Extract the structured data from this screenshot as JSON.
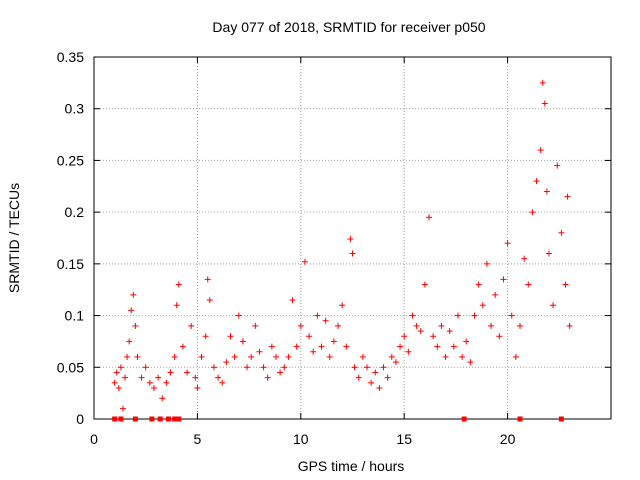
{
  "chart_data": {
    "type": "scatter",
    "title": "Day 077 of 2018, SRMTID for receiver p050",
    "xlabel": "GPS time / hours",
    "ylabel": "SRMTID / TECUs",
    "xlim": [
      0,
      25
    ],
    "ylim": [
      0,
      0.35
    ],
    "xticks": [
      0,
      5,
      10,
      15,
      20
    ],
    "xtick_labels": [
      "0",
      "5",
      "10",
      "15",
      "20"
    ],
    "yticks": [
      0,
      0.05,
      0.1,
      0.15,
      0.2,
      0.25,
      0.3,
      0.35
    ],
    "ytick_labels": [
      "0",
      "0.05",
      "0.1",
      "0.15",
      "0.2",
      "0.25",
      "0.3",
      "0.35"
    ],
    "grid": true,
    "marker": "plus",
    "color": "#ff0000",
    "series": [
      {
        "name": "SRMTID",
        "points": [
          [
            1.0,
            0.035
          ],
          [
            1.1,
            0.045
          ],
          [
            1.2,
            0.03
          ],
          [
            1.3,
            0.05
          ],
          [
            1.4,
            0.01
          ],
          [
            1.5,
            0.04
          ],
          [
            1.6,
            0.06
          ],
          [
            1.7,
            0.075
          ],
          [
            1.8,
            0.105
          ],
          [
            1.9,
            0.12
          ],
          [
            2.0,
            0.09
          ],
          [
            2.1,
            0.06
          ],
          [
            2.3,
            0.04
          ],
          [
            2.5,
            0.05
          ],
          [
            2.7,
            0.035
          ],
          [
            2.9,
            0.03
          ],
          [
            3.1,
            0.04
          ],
          [
            3.3,
            0.02
          ],
          [
            3.5,
            0.035
          ],
          [
            3.7,
            0.045
          ],
          [
            3.9,
            0.06
          ],
          [
            4.0,
            0.11
          ],
          [
            4.1,
            0.13
          ],
          [
            4.3,
            0.07
          ],
          [
            4.5,
            0.045
          ],
          [
            4.7,
            0.09
          ],
          [
            4.9,
            0.04
          ],
          [
            5.0,
            0.03
          ],
          [
            5.2,
            0.06
          ],
          [
            5.4,
            0.08
          ],
          [
            5.5,
            0.135
          ],
          [
            5.6,
            0.115
          ],
          [
            5.8,
            0.05
          ],
          [
            6.0,
            0.04
          ],
          [
            6.2,
            0.035
          ],
          [
            6.4,
            0.055
          ],
          [
            6.6,
            0.08
          ],
          [
            6.8,
            0.06
          ],
          [
            7.0,
            0.1
          ],
          [
            7.2,
            0.075
          ],
          [
            7.4,
            0.05
          ],
          [
            7.6,
            0.06
          ],
          [
            7.8,
            0.09
          ],
          [
            8.0,
            0.065
          ],
          [
            8.2,
            0.05
          ],
          [
            8.4,
            0.04
          ],
          [
            8.6,
            0.07
          ],
          [
            8.8,
            0.06
          ],
          [
            9.0,
            0.045
          ],
          [
            9.2,
            0.05
          ],
          [
            9.4,
            0.06
          ],
          [
            9.6,
            0.115
          ],
          [
            9.8,
            0.07
          ],
          [
            10.0,
            0.09
          ],
          [
            10.2,
            0.152
          ],
          [
            10.4,
            0.08
          ],
          [
            10.6,
            0.065
          ],
          [
            10.8,
            0.1
          ],
          [
            11.0,
            0.07
          ],
          [
            11.2,
            0.095
          ],
          [
            11.4,
            0.06
          ],
          [
            11.6,
            0.075
          ],
          [
            11.8,
            0.09
          ],
          [
            12.0,
            0.11
          ],
          [
            12.2,
            0.07
          ],
          [
            12.4,
            0.174
          ],
          [
            12.5,
            0.16
          ],
          [
            12.6,
            0.05
          ],
          [
            12.8,
            0.04
          ],
          [
            13.0,
            0.06
          ],
          [
            13.2,
            0.05
          ],
          [
            13.4,
            0.035
          ],
          [
            13.6,
            0.045
          ],
          [
            13.8,
            0.03
          ],
          [
            14.0,
            0.05
          ],
          [
            14.2,
            0.04
          ],
          [
            14.4,
            0.06
          ],
          [
            14.6,
            0.055
          ],
          [
            14.8,
            0.07
          ],
          [
            15.0,
            0.08
          ],
          [
            15.2,
            0.065
          ],
          [
            15.4,
            0.1
          ],
          [
            15.6,
            0.09
          ],
          [
            15.8,
            0.085
          ],
          [
            16.0,
            0.13
          ],
          [
            16.2,
            0.195
          ],
          [
            16.4,
            0.08
          ],
          [
            16.6,
            0.07
          ],
          [
            16.8,
            0.09
          ],
          [
            17.0,
            0.06
          ],
          [
            17.2,
            0.085
          ],
          [
            17.4,
            0.07
          ],
          [
            17.6,
            0.1
          ],
          [
            17.8,
            0.06
          ],
          [
            18.0,
            0.075
          ],
          [
            18.2,
            0.055
          ],
          [
            18.4,
            0.1
          ],
          [
            18.6,
            0.13
          ],
          [
            18.8,
            0.11
          ],
          [
            19.0,
            0.15
          ],
          [
            19.2,
            0.09
          ],
          [
            19.4,
            0.12
          ],
          [
            19.6,
            0.08
          ],
          [
            19.8,
            0.135
          ],
          [
            20.0,
            0.17
          ],
          [
            20.2,
            0.1
          ],
          [
            20.4,
            0.06
          ],
          [
            20.6,
            0.09
          ],
          [
            20.8,
            0.155
          ],
          [
            21.0,
            0.13
          ],
          [
            21.2,
            0.2
          ],
          [
            21.4,
            0.23
          ],
          [
            21.6,
            0.26
          ],
          [
            21.7,
            0.325
          ],
          [
            21.8,
            0.305
          ],
          [
            21.9,
            0.22
          ],
          [
            22.0,
            0.16
          ],
          [
            22.2,
            0.11
          ],
          [
            22.4,
            0.245
          ],
          [
            22.6,
            0.18
          ],
          [
            22.8,
            0.13
          ],
          [
            22.9,
            0.215
          ],
          [
            23.0,
            0.09
          ]
        ]
      }
    ],
    "zero_markers": [
      1.0,
      1.3,
      2.0,
      2.8,
      3.2,
      3.6,
      3.9,
      4.1,
      17.9,
      20.6,
      22.6
    ]
  }
}
